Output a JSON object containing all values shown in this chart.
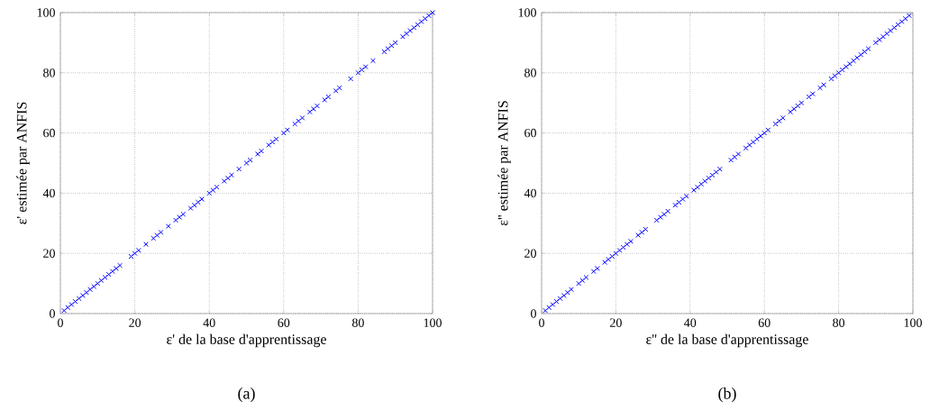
{
  "chart_data": [
    {
      "type": "scatter",
      "xlabel": "ε' de la base d'apprentissage",
      "ylabel": "ε' estimée par ANFIS",
      "annotations": [
        "(a)"
      ],
      "xlim": [
        0,
        100
      ],
      "ylim": [
        0,
        100
      ],
      "xticks": [
        0,
        20,
        40,
        60,
        80,
        100
      ],
      "yticks": [
        0,
        20,
        40,
        60,
        80,
        100
      ],
      "grid": true,
      "marker": "cross",
      "color": "#0000ff",
      "x": [
        1,
        2,
        3,
        4,
        5,
        6,
        7,
        8,
        9,
        10,
        11,
        12,
        13,
        14,
        15,
        16,
        19,
        20,
        21,
        23,
        25,
        26,
        27,
        29,
        31,
        32,
        33,
        35,
        36,
        37,
        38,
        40,
        41,
        42,
        44,
        45,
        46,
        48,
        50,
        51,
        53,
        54,
        56,
        57,
        58,
        60,
        61,
        63,
        64,
        65,
        67,
        68,
        69,
        71,
        72,
        74,
        75,
        78,
        80,
        81,
        82,
        84,
        87,
        88,
        89,
        90,
        92,
        93,
        94,
        95,
        96,
        97,
        98,
        99,
        100
      ],
      "values": [
        1,
        2,
        3,
        4,
        5,
        6,
        7,
        8,
        9,
        10,
        11,
        12,
        13,
        14,
        15,
        16,
        19,
        20,
        21,
        23,
        25,
        26,
        27,
        29,
        31,
        32,
        33,
        35,
        36,
        37,
        38,
        40,
        41,
        42,
        44,
        45,
        46,
        48,
        50,
        51,
        53,
        54,
        56,
        57,
        58,
        60,
        61,
        63,
        64,
        65,
        67,
        68,
        69,
        71,
        72,
        74,
        75,
        78,
        80,
        81,
        82,
        84,
        87,
        88,
        89,
        90,
        92,
        93,
        94,
        95,
        96,
        97,
        98,
        99,
        100
      ]
    },
    {
      "type": "scatter",
      "xlabel": "ε'' de la base d'apprentissage",
      "ylabel": "ε'' estimée par ANFIS",
      "annotations": [
        "(b)"
      ],
      "xlim": [
        0,
        100
      ],
      "ylim": [
        0,
        100
      ],
      "xticks": [
        0,
        20,
        40,
        60,
        80,
        100
      ],
      "yticks": [
        0,
        20,
        40,
        60,
        80,
        100
      ],
      "grid": true,
      "marker": "cross",
      "color": "#0000ff",
      "x": [
        1,
        2,
        3,
        4,
        5,
        6,
        7,
        8,
        10,
        11,
        12,
        14,
        15,
        17,
        18,
        19,
        20,
        21,
        22,
        23,
        24,
        26,
        27,
        28,
        31,
        32,
        33,
        34,
        36,
        37,
        38,
        39,
        41,
        42,
        43,
        44,
        45,
        46,
        47,
        48,
        51,
        52,
        53,
        55,
        56,
        57,
        58,
        59,
        60,
        61,
        63,
        64,
        65,
        67,
        68,
        69,
        70,
        72,
        73,
        75,
        76,
        78,
        79,
        80,
        81,
        82,
        83,
        84,
        85,
        86,
        87,
        88,
        90,
        91,
        92,
        93,
        94,
        95,
        96,
        97,
        98,
        99
      ],
      "values": [
        1,
        2,
        3,
        4,
        5,
        6,
        7,
        8,
        10,
        11,
        12,
        14,
        15,
        17,
        18,
        19,
        20,
        21,
        22,
        23,
        24,
        26,
        27,
        28,
        31,
        32,
        33,
        34,
        36,
        37,
        38,
        39,
        41,
        42,
        43,
        44,
        45,
        46,
        47,
        48,
        51,
        52,
        53,
        55,
        56,
        57,
        58,
        59,
        60,
        61,
        63,
        64,
        65,
        67,
        68,
        69,
        70,
        72,
        73,
        75,
        76,
        78,
        79,
        80,
        81,
        82,
        83,
        84,
        85,
        86,
        87,
        88,
        90,
        91,
        92,
        93,
        94,
        95,
        96,
        97,
        98,
        99
      ]
    }
  ]
}
